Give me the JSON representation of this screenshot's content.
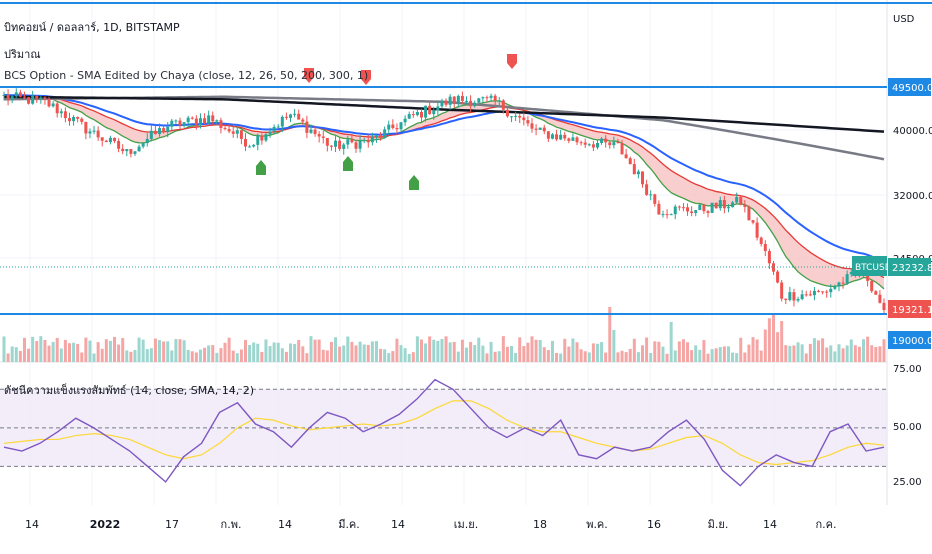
{
  "header": {
    "symbol_line": "บิทคอยน์ / ดอลลาร์, 1D, BITSTAMP",
    "volume_label": "ปริมาณ",
    "indicator_line": "BCS Option - SMA Edited by Chaya (close, 12, 26, 50, 200, 300, 1)"
  },
  "rsi_header": "ดัชนีความแข็งแรงสัมพัทธ์ (14, close, SMA, 14, 2)",
  "colors": {
    "up": "#26a69a",
    "down": "#ef5350",
    "ema_fast": "#43a047",
    "ema_slow": "#e53935",
    "cloud": "#f7c6c5",
    "sma50": "#2962ff",
    "sma200": "#131722",
    "sma300": "#787b86",
    "hline": "#1e88e5",
    "rsi": "#7e57c2",
    "rsi_ma": "#fdd835",
    "rsi_band": "#ede7f6"
  },
  "chart_data": {
    "type": "candlestick",
    "symbol": "BTCUSD",
    "y_unit": "USD",
    "y_axis_ticks": [
      "49500.00",
      "40000.00",
      "32000.00",
      "24500.00",
      "19000.00"
    ],
    "price_labels": {
      "hline_upper": "49500.00",
      "ticker": "BTCUSD",
      "ticker_price": "23232.80",
      "last_price": "19321.14",
      "hline_lower": "19000.00"
    },
    "horizontal_lines": [
      49500,
      19000
    ],
    "x_ticks": [
      "14",
      "2022",
      "17",
      "ก.พ.",
      "14",
      "มี.ค.",
      "14",
      "เม.ย.",
      "18",
      "พ.ค.",
      "16",
      "มิ.ย.",
      "14",
      "ก.ค."
    ],
    "price_path_days": [
      0,
      10,
      20,
      30,
      40,
      50,
      60,
      70,
      80,
      90,
      100,
      110,
      120,
      130,
      140,
      150,
      160,
      170,
      180,
      190,
      200,
      210,
      215
    ],
    "price_path": [
      47500,
      46500,
      41500,
      37500,
      42000,
      43500,
      39000,
      44000,
      38500,
      39500,
      43800,
      47000,
      46500,
      41000,
      39500,
      38500,
      29500,
      29500,
      30500,
      20500,
      20800,
      22800,
      19321
    ],
    "sma200_path": [
      47500,
      47000,
      45000,
      43500,
      41000
    ],
    "sma300_path": [
      47000,
      47500,
      46500,
      43000,
      36500
    ],
    "rsi": {
      "upper": 70,
      "lower": 30,
      "mid": 50,
      "y_axis_ticks": [
        "75.00",
        "50.00",
        "25.00"
      ],
      "values": [
        40,
        38,
        42,
        48,
        55,
        50,
        44,
        38,
        30,
        22,
        35,
        42,
        58,
        63,
        52,
        48,
        40,
        50,
        58,
        55,
        48,
        52,
        57,
        65,
        75,
        70,
        60,
        50,
        45,
        50,
        46,
        54,
        36,
        34,
        40,
        38,
        40,
        48,
        54,
        44,
        28,
        20,
        30,
        36,
        32,
        30,
        48,
        52,
        38,
        40
      ],
      "ma_values": [
        42,
        43,
        44,
        44,
        46,
        47,
        46,
        44,
        40,
        36,
        34,
        36,
        42,
        50,
        55,
        54,
        51,
        49,
        50,
        51,
        52,
        51,
        52,
        55,
        60,
        64,
        64,
        60,
        54,
        50,
        48,
        48,
        45,
        42,
        40,
        38,
        39,
        42,
        45,
        46,
        42,
        36,
        32,
        31,
        32,
        33,
        36,
        40,
        42,
        41
      ]
    }
  }
}
